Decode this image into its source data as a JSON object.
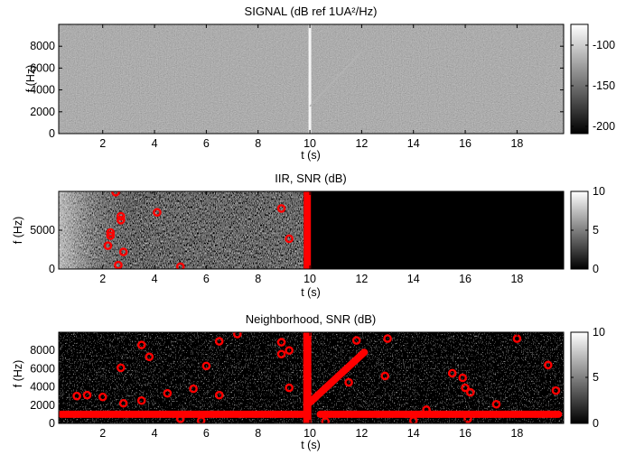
{
  "figure": {
    "panels": [
      {
        "title": "SIGNAL (dB ref 1UA²/Hz)",
        "xlabel": "t (s)",
        "ylabel": "f (Hz)",
        "yticks": [
          "0",
          "2000",
          "4000",
          "6000",
          "8000"
        ],
        "xticks": [
          "2",
          "4",
          "6",
          "8",
          "10",
          "12",
          "14",
          "16",
          "18"
        ],
        "cbar_ticks": [
          "-100",
          "-150",
          "-200"
        ]
      },
      {
        "title": "IIR, SNR (dB)",
        "xlabel": "t (s)",
        "ylabel": "f (Hz)",
        "yticks": [
          "0",
          "5000"
        ],
        "xticks": [
          "2",
          "4",
          "6",
          "8",
          "10",
          "12",
          "14",
          "16",
          "18"
        ],
        "cbar_ticks": [
          "10",
          "5",
          "0"
        ]
      },
      {
        "title": "Neighborhood, SNR (dB)",
        "xlabel": "t (s)",
        "ylabel": "f (Hz)",
        "yticks": [
          "0",
          "2000",
          "4000",
          "6000",
          "8000"
        ],
        "xticks": [
          "2",
          "4",
          "6",
          "8",
          "10",
          "12",
          "14",
          "16",
          "18"
        ],
        "cbar_ticks": [
          "10",
          "5",
          "0"
        ]
      }
    ]
  },
  "chart_data": [
    {
      "type": "heatmap",
      "title": "SIGNAL (dB ref 1UA²/Hz)",
      "xlabel": "t (s)",
      "ylabel": "f (Hz)",
      "xlim": [
        0.3,
        19.8
      ],
      "ylim": [
        0,
        10000
      ],
      "colormap": "gray",
      "clim": [
        -210,
        -75
      ],
      "background_level": -160,
      "features": [
        {
          "kind": "vertical_line",
          "t": 10,
          "f_range": [
            0,
            10000
          ],
          "level": -80
        },
        {
          "kind": "chirp",
          "t_range": [
            10,
            12
          ],
          "f_range": [
            2500,
            7500
          ],
          "level": -115
        }
      ]
    },
    {
      "type": "heatmap",
      "title": "IIR, SNR (dB)",
      "xlabel": "t (s)",
      "ylabel": "f (Hz)",
      "xlim": [
        0.3,
        19.8
      ],
      "ylim": [
        0,
        10000
      ],
      "colormap": "gray",
      "clim": [
        0,
        10
      ],
      "detections": [
        {
          "t": 2.5,
          "f": 9900
        },
        {
          "t": 2.7,
          "f": 6800
        },
        {
          "t": 2.7,
          "f": 6300
        },
        {
          "t": 4.1,
          "f": 7300
        },
        {
          "t": 2.3,
          "f": 4700
        },
        {
          "t": 2.3,
          "f": 4300
        },
        {
          "t": 2.2,
          "f": 3000
        },
        {
          "t": 2.8,
          "f": 2200
        },
        {
          "t": 2.6,
          "f": 500
        },
        {
          "t": 5.0,
          "f": 300
        },
        {
          "t": 8.9,
          "f": 7800
        },
        {
          "t": 9.2,
          "f": 3900
        }
      ],
      "detection_line": {
        "t": 9.9,
        "f_range": [
          0,
          10000
        ]
      }
    },
    {
      "type": "heatmap",
      "title": "Neighborhood, SNR (dB)",
      "xlabel": "t (s)",
      "ylabel": "f (Hz)",
      "xlim": [
        0.3,
        19.8
      ],
      "ylim": [
        0,
        10000
      ],
      "colormap": "gray",
      "clim": [
        0,
        10
      ],
      "detections": [
        {
          "t": 1.0,
          "f": 3000
        },
        {
          "t": 1.4,
          "f": 3100
        },
        {
          "t": 2.0,
          "f": 2900
        },
        {
          "t": 2.7,
          "f": 6100
        },
        {
          "t": 3.5,
          "f": 8600
        },
        {
          "t": 3.8,
          "f": 7300
        },
        {
          "t": 3.5,
          "f": 2500
        },
        {
          "t": 2.8,
          "f": 2200
        },
        {
          "t": 4.5,
          "f": 3300
        },
        {
          "t": 5.0,
          "f": 500
        },
        {
          "t": 5.5,
          "f": 3800
        },
        {
          "t": 5.8,
          "f": 300
        },
        {
          "t": 6.0,
          "f": 6300
        },
        {
          "t": 6.5,
          "f": 9000
        },
        {
          "t": 6.5,
          "f": 3100
        },
        {
          "t": 7.2,
          "f": 9800
        },
        {
          "t": 8.9,
          "f": 8900
        },
        {
          "t": 9.2,
          "f": 8000
        },
        {
          "t": 8.9,
          "f": 7600
        },
        {
          "t": 9.2,
          "f": 3900
        },
        {
          "t": 10.6,
          "f": 200
        },
        {
          "t": 11.5,
          "f": 4500
        },
        {
          "t": 11.8,
          "f": 9100
        },
        {
          "t": 13.0,
          "f": 9300
        },
        {
          "t": 12.9,
          "f": 5200
        },
        {
          "t": 14.0,
          "f": 300
        },
        {
          "t": 14.5,
          "f": 1500
        },
        {
          "t": 15.5,
          "f": 5500
        },
        {
          "t": 15.9,
          "f": 5000
        },
        {
          "t": 16.0,
          "f": 3900
        },
        {
          "t": 16.2,
          "f": 3400
        },
        {
          "t": 16.1,
          "f": 500
        },
        {
          "t": 17.2,
          "f": 2100
        },
        {
          "t": 18.0,
          "f": 9300
        },
        {
          "t": 19.2,
          "f": 6400
        },
        {
          "t": 19.5,
          "f": 3600
        }
      ],
      "detection_lines": [
        {
          "kind": "vertical",
          "t": 9.9,
          "f_range": [
            0,
            10000
          ]
        },
        {
          "kind": "horizontal",
          "f": 1000,
          "t_range": [
            0.4,
            9.7
          ]
        },
        {
          "kind": "horizontal",
          "f": 1000,
          "t_range": [
            10.4,
            19.6
          ]
        },
        {
          "kind": "chirp",
          "t_range": [
            10.0,
            12.1
          ],
          "f_range": [
            2300,
            7800
          ]
        }
      ]
    }
  ]
}
